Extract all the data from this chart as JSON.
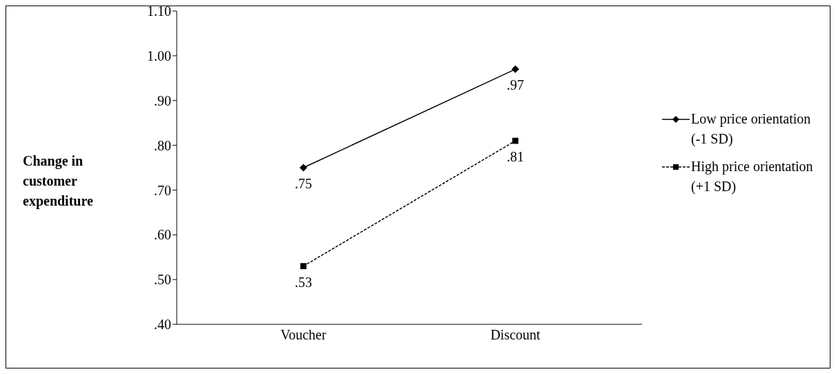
{
  "chart_data": {
    "type": "line",
    "ylabel": "Change in customer expenditure",
    "categories": [
      "Voucher",
      "Discount"
    ],
    "series": [
      {
        "name": "Low price orientation (-1 SD)",
        "color": "#000000",
        "values": [
          0.75,
          0.97
        ],
        "value_labels": [
          ".75",
          ".97"
        ],
        "marker": "diamond",
        "line_style": "solid"
      },
      {
        "name": "High price orientation (+1 SD)",
        "color": "#000000",
        "values": [
          0.53,
          0.81
        ],
        "value_labels": [
          ".53",
          ".81"
        ],
        "marker": "square",
        "line_style": "dashed"
      }
    ],
    "ylim": [
      0.4,
      1.1
    ],
    "yticks": [
      {
        "value": 0.4,
        "label": ".40"
      },
      {
        "value": 0.5,
        "label": ".50"
      },
      {
        "value": 0.6,
        "label": ".60"
      },
      {
        "value": 0.7,
        "label": ".70"
      },
      {
        "value": 0.8,
        "label": ".80"
      },
      {
        "value": 0.9,
        "label": ".90"
      },
      {
        "value": 1.0,
        "label": "1.00"
      },
      {
        "value": 1.1,
        "label": "1.10"
      }
    ],
    "grid": false,
    "legend": "right"
  }
}
